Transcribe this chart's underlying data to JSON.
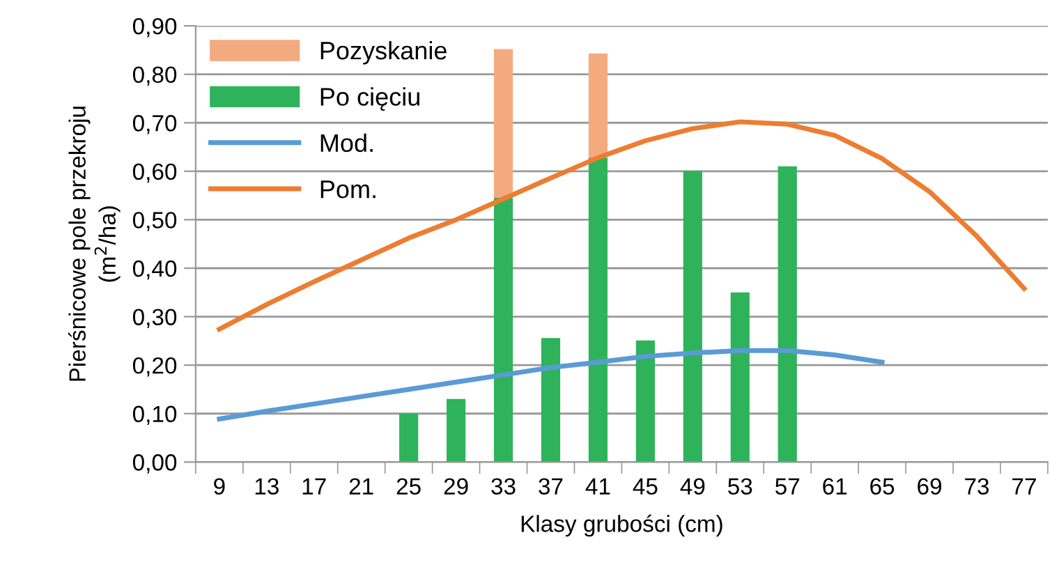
{
  "chart_data": {
    "type": "bar",
    "stacked": true,
    "xlabel": "Klasy grubości (cm)",
    "ylabel": "Pierśnicowe pole przekroju\n(m$^{2}$/ha)",
    "categories": [
      "9",
      "13",
      "17",
      "21",
      "25",
      "29",
      "33",
      "37",
      "41",
      "45",
      "49",
      "53",
      "57",
      "61",
      "65",
      "69",
      "73",
      "77"
    ],
    "series": [
      {
        "name": "Po cięciu",
        "color": "#2eb35a",
        "values": [
          null,
          null,
          null,
          null,
          0.1,
          0.13,
          0.545,
          0.256,
          0.628,
          0.251,
          0.601,
          0.35,
          0.61,
          null,
          null,
          null,
          null,
          null
        ]
      },
      {
        "name": "Pozyskanie",
        "color": "#f4aa7f",
        "values": [
          null,
          null,
          null,
          null,
          null,
          null,
          0.307,
          null,
          0.215,
          null,
          null,
          null,
          null,
          null,
          null,
          null,
          null,
          null
        ]
      },
      {
        "name": "Mod.",
        "type": "line",
        "color": "#5b9bd5",
        "values": [
          0.089,
          0.105,
          0.12,
          0.135,
          0.15,
          0.165,
          0.18,
          0.195,
          0.206,
          0.218,
          0.225,
          0.23,
          0.23,
          0.221,
          0.206,
          null,
          null,
          null
        ]
      },
      {
        "name": "Pom.",
        "type": "line",
        "color": "#ed7d31",
        "values": [
          0.274,
          0.325,
          0.372,
          0.417,
          0.462,
          0.5,
          0.543,
          0.586,
          0.628,
          0.663,
          0.688,
          0.702,
          0.697,
          0.674,
          0.626,
          0.558,
          0.466,
          0.358
        ]
      }
    ],
    "ylim": [
      0,
      0.9
    ],
    "yticks": [
      {
        "value": 0,
        "label": "0,00"
      },
      {
        "value": 0.1,
        "label": "0,10"
      },
      {
        "value": 0.2,
        "label": "0,20"
      },
      {
        "value": 0.3,
        "label": "0,30"
      },
      {
        "value": 0.4,
        "label": "0,40"
      },
      {
        "value": 0.5,
        "label": "0,50"
      },
      {
        "value": 0.6,
        "label": "0,60"
      },
      {
        "value": 0.7,
        "label": "0,70"
      },
      {
        "value": 0.8,
        "label": "0,80"
      },
      {
        "value": 0.9,
        "label": "0,90"
      }
    ],
    "grid": "y",
    "legend": "top left",
    "marker": "none",
    "line_style": "solid"
  }
}
